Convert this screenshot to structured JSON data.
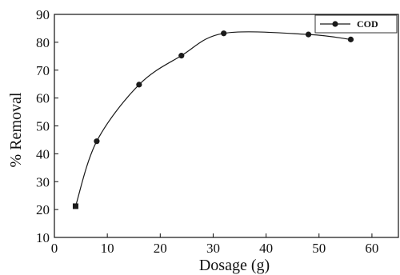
{
  "chart_data": {
    "type": "line",
    "title": "",
    "xlabel": "Dosage (g)",
    "ylabel": "% Removal",
    "xlim": [
      0,
      65
    ],
    "ylim": [
      10,
      90
    ],
    "xticks": [
      0,
      10,
      20,
      30,
      40,
      50,
      60
    ],
    "yticks": [
      10,
      20,
      30,
      40,
      50,
      60,
      70,
      80,
      90
    ],
    "grid": false,
    "legend_position": "top-right",
    "series": [
      {
        "name": "COD",
        "color": "#1a1a1a",
        "marker": "circle",
        "smooth": true,
        "x": [
          4,
          8,
          16,
          24,
          32,
          48,
          56
        ],
        "y": [
          21.2,
          44.5,
          64.8,
          75.2,
          83.2,
          82.8,
          81.0
        ]
      }
    ]
  }
}
